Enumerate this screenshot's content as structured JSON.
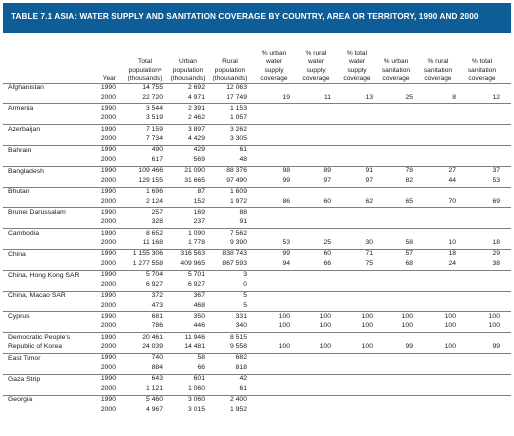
{
  "table": {
    "title": "TABLE 7.1   ASIA: WATER SUPPLY AND SANITATION COVERAGE BY COUNTRY, AREA OR TERRITORY, 1990 AND 2000",
    "columns": [
      {
        "key": "year",
        "label": "Year"
      },
      {
        "key": "total_pop",
        "label": "Total\npopulationᵃ\n(thousands)"
      },
      {
        "key": "urban_pop",
        "label": "Urban\npopulation\n(thousands)"
      },
      {
        "key": "rural_pop",
        "label": "Rural\npopulation\n(thousands)"
      },
      {
        "key": "urban_water",
        "label": "% urban\nwater\nsupply\ncoverage"
      },
      {
        "key": "rural_water",
        "label": "% rural\nwater\nsupply\ncoverage"
      },
      {
        "key": "total_water",
        "label": "% total\nwater\nsupply\ncoverage"
      },
      {
        "key": "urban_san",
        "label": "% urban\nsanitation\ncoverage"
      },
      {
        "key": "rural_san",
        "label": "% rural\nsanitation\ncoverage"
      },
      {
        "key": "total_san",
        "label": "% total\nsanitation\ncoverage"
      }
    ],
    "countries": [
      {
        "name": "Afghanistan",
        "rows": [
          [
            "1990",
            "14 755",
            "2 692",
            "12 063",
            "",
            "",
            "",
            "",
            "",
            ""
          ],
          [
            "2000",
            "22 720",
            "4 971",
            "17 749",
            "19",
            "11",
            "13",
            "25",
            "8",
            "12"
          ]
        ]
      },
      {
        "name": "Armenia",
        "rows": [
          [
            "1990",
            "3 544",
            "2 391",
            "1 153",
            "",
            "",
            "",
            "",
            "",
            ""
          ],
          [
            "2000",
            "3 519",
            "2 462",
            "1 057",
            "",
            "",
            "",
            "",
            "",
            ""
          ]
        ]
      },
      {
        "name": "Azerbaijan",
        "rows": [
          [
            "1990",
            "7 159",
            "3 897",
            "3 262",
            "",
            "",
            "",
            "",
            "",
            ""
          ],
          [
            "2000",
            "7 734",
            "4 429",
            "3 305",
            "",
            "",
            "",
            "",
            "",
            ""
          ]
        ]
      },
      {
        "name": "Bahrain",
        "rows": [
          [
            "1990",
            "490",
            "429",
            "61",
            "",
            "",
            "",
            "",
            "",
            ""
          ],
          [
            "2000",
            "617",
            "569",
            "48",
            "",
            "",
            "",
            "",
            "",
            ""
          ]
        ]
      },
      {
        "name": "Bangladesh",
        "rows": [
          [
            "1990",
            "109 466",
            "21 090",
            "88 376",
            "98",
            "89",
            "91",
            "78",
            "27",
            "37"
          ],
          [
            "2000",
            "129 155",
            "31 665",
            "97 490",
            "99",
            "97",
            "97",
            "82",
            "44",
            "53"
          ]
        ]
      },
      {
        "name": "Bhutan",
        "rows": [
          [
            "1990",
            "1 696",
            "87",
            "1 609",
            "",
            "",
            "",
            "",
            "",
            ""
          ],
          [
            "2000",
            "2 124",
            "152",
            "1 972",
            "86",
            "60",
            "62",
            "65",
            "70",
            "69"
          ]
        ]
      },
      {
        "name": "Brunei Darussalam",
        "rows": [
          [
            "1990",
            "257",
            "169",
            "88",
            "",
            "",
            "",
            "",
            "",
            ""
          ],
          [
            "2000",
            "328",
            "237",
            "91",
            "",
            "",
            "",
            "",
            "",
            ""
          ]
        ]
      },
      {
        "name": "Cambodia",
        "rows": [
          [
            "1990",
            "8 652",
            "1 090",
            "7 562",
            "",
            "",
            "",
            "",
            "",
            ""
          ],
          [
            "2000",
            "11 168",
            "1 778",
            "9 390",
            "53",
            "25",
            "30",
            "58",
            "10",
            "18"
          ]
        ]
      },
      {
        "name": "China",
        "rows": [
          [
            "1990",
            "1 155 306",
            "316 563",
            "838 743",
            "99",
            "60",
            "71",
            "57",
            "18",
            "29"
          ],
          [
            "2000",
            "1 277 558",
            "409 965",
            "867 593",
            "94",
            "66",
            "75",
            "68",
            "24",
            "38"
          ]
        ]
      },
      {
        "name": "China, Hong Kong SAR",
        "rows": [
          [
            "1990",
            "5 704",
            "5 701",
            "3",
            "",
            "",
            "",
            "",
            "",
            ""
          ],
          [
            "2000",
            "6 927",
            "6 927",
            "0",
            "",
            "",
            "",
            "",
            "",
            ""
          ]
        ]
      },
      {
        "name": "China, Macao SAR",
        "rows": [
          [
            "1990",
            "372",
            "367",
            "5",
            "",
            "",
            "",
            "",
            "",
            ""
          ],
          [
            "2000",
            "473",
            "468",
            "5",
            "",
            "",
            "",
            "",
            "",
            ""
          ]
        ]
      },
      {
        "name": "Cyprus",
        "rows": [
          [
            "1990",
            "681",
            "350",
            "331",
            "100",
            "100",
            "100",
            "100",
            "100",
            "100"
          ],
          [
            "2000",
            "786",
            "446",
            "340",
            "100",
            "100",
            "100",
            "100",
            "100",
            "100"
          ]
        ]
      },
      {
        "name": "Democratic People’s\nRepublic of Korea",
        "rows": [
          [
            "1990",
            "20 461",
            "11 946",
            "8 515",
            "",
            "",
            "",
            "",
            "",
            ""
          ],
          [
            "2000",
            "24 039",
            "14 481",
            "9 558",
            "100",
            "100",
            "100",
            "99",
            "100",
            "99"
          ]
        ]
      },
      {
        "name": "East Timor",
        "rows": [
          [
            "1990",
            "740",
            "58",
            "682",
            "",
            "",
            "",
            "",
            "",
            ""
          ],
          [
            "2000",
            "884",
            "66",
            "818",
            "",
            "",
            "",
            "",
            "",
            ""
          ]
        ]
      },
      {
        "name": "Gaza Strip",
        "rows": [
          [
            "1990",
            "643",
            "601",
            "42",
            "",
            "",
            "",
            "",
            "",
            ""
          ],
          [
            "2000",
            "1 121",
            "1 060",
            "61",
            "",
            "",
            "",
            "",
            "",
            ""
          ]
        ]
      },
      {
        "name": "Georgia",
        "rows": [
          [
            "1990",
            "5 460",
            "3 060",
            "2 400",
            "",
            "",
            "",
            "",
            "",
            ""
          ],
          [
            "2000",
            "4 967",
            "3 015",
            "1 952",
            "",
            "",
            "",
            "",
            "",
            ""
          ]
        ]
      }
    ]
  }
}
